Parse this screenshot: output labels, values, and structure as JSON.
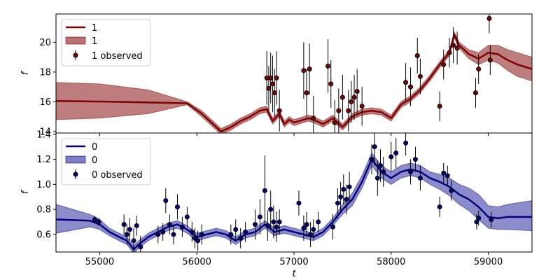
{
  "chart_data": [
    {
      "type": "line",
      "panel": "top",
      "title": "",
      "xlabel": "",
      "ylabel": "f",
      "xlim": [
        54550,
        59450
      ],
      "ylim": [
        13.9,
        21.9
      ],
      "xticks": [
        55000,
        56000,
        57000,
        58000,
        59000
      ],
      "yticks": [
        14,
        16,
        18,
        20
      ],
      "yticklabels": [
        "14",
        "16",
        "18",
        "20"
      ],
      "show_xticklabels": false,
      "legend": {
        "placement": "top-left",
        "entries": [
          "1",
          "1",
          "1 observed"
        ]
      },
      "color": "#800000",
      "band_color": "#b87070",
      "series": [
        {
          "name": "1",
          "kind": "mean",
          "x": [
            54550,
            55000,
            55500,
            55900,
            56050,
            56150,
            56250,
            56350,
            56450,
            56550,
            56650,
            56720,
            56780,
            56850,
            56900,
            56950,
            57000,
            57100,
            57150,
            57200,
            57300,
            57400,
            57500,
            57600,
            57700,
            57800,
            57900,
            58000,
            58100,
            58200,
            58300,
            58400,
            58500,
            58600,
            58650,
            58700,
            58800,
            58900,
            59000,
            59100,
            59200,
            59300,
            59450
          ],
          "y": [
            16.05,
            16.02,
            15.95,
            15.9,
            15.2,
            14.6,
            14.0,
            14.3,
            14.7,
            15.0,
            15.4,
            15.5,
            14.7,
            15.2,
            14.5,
            14.8,
            14.6,
            14.8,
            14.9,
            14.8,
            14.5,
            14.9,
            14.3,
            15.0,
            15.3,
            15.4,
            15.3,
            14.9,
            15.8,
            16.2,
            16.8,
            17.6,
            18.5,
            19.3,
            20.5,
            19.8,
            19.2,
            18.9,
            19.3,
            19.2,
            18.8,
            18.5,
            18.2
          ]
        },
        {
          "name": "1",
          "kind": "band",
          "x": [
            54550,
            55000,
            55500,
            55900,
            56050,
            56150,
            56250,
            56350,
            56450,
            56550,
            56650,
            56720,
            56780,
            56850,
            56900,
            56950,
            57000,
            57100,
            57150,
            57200,
            57300,
            57400,
            57500,
            57600,
            57700,
            57800,
            57900,
            58000,
            58100,
            58200,
            58300,
            58400,
            58500,
            58600,
            58650,
            58700,
            58800,
            58900,
            59000,
            59100,
            59200,
            59300,
            59450
          ],
          "lower": [
            14.8,
            14.9,
            15.2,
            15.8,
            15.0,
            14.4,
            13.8,
            14.1,
            14.5,
            14.8,
            15.2,
            15.3,
            14.5,
            15.0,
            14.3,
            14.6,
            14.4,
            14.6,
            14.7,
            14.6,
            14.3,
            14.7,
            14.1,
            14.8,
            15.1,
            15.2,
            15.1,
            14.7,
            15.6,
            16.0,
            16.6,
            17.4,
            18.3,
            19.1,
            20.3,
            19.6,
            18.9,
            18.5,
            18.8,
            18.6,
            18.1,
            17.7,
            17.4
          ],
          "upper": [
            17.3,
            17.2,
            16.8,
            16.0,
            15.4,
            14.8,
            14.2,
            14.5,
            14.9,
            15.2,
            15.6,
            15.7,
            14.9,
            15.4,
            14.7,
            15.0,
            14.8,
            15.0,
            15.1,
            15.0,
            14.7,
            15.1,
            14.5,
            15.2,
            15.5,
            15.6,
            15.5,
            15.1,
            16.0,
            16.4,
            17.0,
            17.8,
            18.7,
            19.5,
            20.7,
            20.0,
            19.5,
            19.3,
            19.8,
            19.8,
            19.5,
            19.3,
            19.0
          ]
        },
        {
          "name": "1 observed",
          "kind": "observed",
          "x": [
            56720,
            56740,
            56760,
            56780,
            56800,
            56820,
            56850,
            57100,
            57130,
            57160,
            57200,
            57350,
            57380,
            57420,
            57460,
            57500,
            57560,
            57590,
            57620,
            57650,
            57700,
            58150,
            58200,
            58270,
            58300,
            58500,
            58540,
            58600,
            58640,
            58680,
            58870,
            58900,
            59010,
            59020
          ],
          "y": [
            17.6,
            16.9,
            17.6,
            17.2,
            16.6,
            17.6,
            15.4,
            18.1,
            16.6,
            18.2,
            14.9,
            18.4,
            17.2,
            14.6,
            15.4,
            16.3,
            15.4,
            16.0,
            16.3,
            16.7,
            15.7,
            17.3,
            17.0,
            19.1,
            17.7,
            15.7,
            18.5,
            19.3,
            19.8,
            19.6,
            16.6,
            18.2,
            21.6,
            18.8
          ],
          "err": [
            1.8,
            1.5,
            1.7,
            1.9,
            1.6,
            1.8,
            1.4,
            1.9,
            1.6,
            1.7,
            1.5,
            1.8,
            1.6,
            1.5,
            1.5,
            1.5,
            1.4,
            1.4,
            1.5,
            1.5,
            1.3,
            1.3,
            1.3,
            1.2,
            1.2,
            1.0,
            1.0,
            1.0,
            1.2,
            1.1,
            1.0,
            1.0,
            1.0,
            1.0
          ]
        }
      ]
    },
    {
      "type": "line",
      "panel": "bottom",
      "title": "",
      "xlabel": "t",
      "ylabel": "f",
      "xlim": [
        54550,
        59450
      ],
      "ylim": [
        0.46,
        1.41
      ],
      "xticks": [
        55000,
        56000,
        57000,
        58000,
        59000
      ],
      "xticklabels": [
        "55000",
        "56000",
        "57000",
        "58000",
        "59000"
      ],
      "yticks": [
        0.6,
        0.8,
        1.0,
        1.2,
        1.4
      ],
      "yticklabels": [
        "0.6",
        "0.8",
        "1.0",
        "1.2",
        "1.4"
      ],
      "show_xticklabels": true,
      "legend": {
        "placement": "top-left",
        "entries": [
          "0",
          "0",
          "0 observed"
        ]
      },
      "color": "#00007f",
      "band_color": "#7f7fc4",
      "series": [
        {
          "name": "0",
          "kind": "mean",
          "x": [
            54550,
            54900,
            55000,
            55100,
            55200,
            55280,
            55350,
            55400,
            55500,
            55600,
            55700,
            55800,
            55900,
            56000,
            56100,
            56200,
            56300,
            56400,
            56500,
            56600,
            56700,
            56800,
            56900,
            57000,
            57100,
            57200,
            57300,
            57400,
            57500,
            57600,
            57700,
            57800,
            57900,
            58000,
            58100,
            58200,
            58300,
            58400,
            58500,
            58600,
            58700,
            58800,
            58900,
            59000,
            59100,
            59200,
            59450
          ],
          "y": [
            0.72,
            0.71,
            0.68,
            0.62,
            0.58,
            0.55,
            0.48,
            0.52,
            0.58,
            0.62,
            0.66,
            0.68,
            0.64,
            0.58,
            0.6,
            0.62,
            0.6,
            0.55,
            0.6,
            0.62,
            0.68,
            0.62,
            0.64,
            0.62,
            0.6,
            0.58,
            0.62,
            0.7,
            0.8,
            0.88,
            1.02,
            1.2,
            1.1,
            1.05,
            1.1,
            1.12,
            1.1,
            1.05,
            1.02,
            0.98,
            0.92,
            0.88,
            0.82,
            0.74,
            0.73,
            0.74,
            0.74
          ]
        },
        {
          "name": "0",
          "kind": "band",
          "x": [
            54550,
            54900,
            55000,
            55100,
            55200,
            55280,
            55350,
            55400,
            55500,
            55600,
            55700,
            55800,
            55900,
            56000,
            56100,
            56200,
            56300,
            56400,
            56500,
            56600,
            56700,
            56800,
            56900,
            57000,
            57100,
            57200,
            57300,
            57400,
            57500,
            57600,
            57700,
            57800,
            57900,
            58000,
            58100,
            58200,
            58300,
            58400,
            58500,
            58600,
            58700,
            58800,
            58900,
            59000,
            59100,
            59200,
            59450
          ],
          "lower": [
            0.61,
            0.66,
            0.64,
            0.59,
            0.55,
            0.52,
            0.45,
            0.49,
            0.55,
            0.59,
            0.63,
            0.65,
            0.61,
            0.55,
            0.57,
            0.59,
            0.57,
            0.52,
            0.57,
            0.59,
            0.65,
            0.59,
            0.61,
            0.59,
            0.57,
            0.55,
            0.59,
            0.67,
            0.76,
            0.83,
            0.97,
            1.15,
            1.05,
            1.0,
            1.05,
            1.07,
            1.05,
            1.0,
            0.96,
            0.91,
            0.84,
            0.79,
            0.72,
            0.65,
            0.64,
            0.64,
            0.63
          ],
          "upper": [
            0.84,
            0.76,
            0.72,
            0.65,
            0.61,
            0.58,
            0.51,
            0.55,
            0.61,
            0.65,
            0.69,
            0.71,
            0.67,
            0.61,
            0.63,
            0.65,
            0.63,
            0.58,
            0.63,
            0.65,
            0.71,
            0.65,
            0.67,
            0.65,
            0.63,
            0.61,
            0.65,
            0.73,
            0.84,
            0.93,
            1.07,
            1.25,
            1.15,
            1.1,
            1.15,
            1.17,
            1.15,
            1.1,
            1.08,
            1.05,
            1.0,
            0.97,
            0.92,
            0.83,
            0.82,
            0.84,
            0.87
          ]
        },
        {
          "name": "0 observed",
          "kind": "observed",
          "x": [
            54950,
            54990,
            55250,
            55280,
            55310,
            55350,
            55380,
            55420,
            55600,
            55650,
            55680,
            55720,
            55760,
            55800,
            55850,
            55900,
            55950,
            55980,
            56010,
            56050,
            56350,
            56400,
            56450,
            56500,
            56600,
            56650,
            56700,
            56730,
            56760,
            56790,
            56820,
            56850,
            57050,
            57100,
            57130,
            57170,
            57200,
            57250,
            57400,
            57450,
            57480,
            57510,
            57540,
            57570,
            57800,
            57830,
            57860,
            57890,
            57920,
            58000,
            58050,
            58150,
            58200,
            58250,
            58300,
            58500,
            58540,
            58580,
            58620,
            58880,
            58900,
            59030
          ],
          "y": [
            0.72,
            0.7,
            0.68,
            0.6,
            0.64,
            0.55,
            0.67,
            0.5,
            0.6,
            0.62,
            0.87,
            0.68,
            0.6,
            0.82,
            0.66,
            0.74,
            0.62,
            0.57,
            0.55,
            0.6,
            0.6,
            0.64,
            0.57,
            0.62,
            0.68,
            0.74,
            0.95,
            0.67,
            0.8,
            0.7,
            0.66,
            0.7,
            0.85,
            0.65,
            0.68,
            0.6,
            0.64,
            0.7,
            0.66,
            0.85,
            0.9,
            0.96,
            0.88,
            0.98,
            1.2,
            1.3,
            1.05,
            1.15,
            1.1,
            1.22,
            1.25,
            1.33,
            1.1,
            1.2,
            1.05,
            0.82,
            1.09,
            1.07,
            0.95,
            0.7,
            0.73,
            0.72
          ],
          "err": [
            0.03,
            0.03,
            0.08,
            0.08,
            0.09,
            0.1,
            0.08,
            0.09,
            0.07,
            0.07,
            0.1,
            0.08,
            0.08,
            0.1,
            0.08,
            0.08,
            0.08,
            0.08,
            0.08,
            0.08,
            0.08,
            0.08,
            0.08,
            0.08,
            0.12,
            0.14,
            0.28,
            0.12,
            0.15,
            0.13,
            0.12,
            0.1,
            0.1,
            0.1,
            0.1,
            0.1,
            0.08,
            0.08,
            0.1,
            0.12,
            0.12,
            0.12,
            0.12,
            0.12,
            0.12,
            0.15,
            0.14,
            0.13,
            0.12,
            0.12,
            0.12,
            0.1,
            0.1,
            0.1,
            0.1,
            0.08,
            0.08,
            0.08,
            0.08,
            0.06,
            0.06,
            0.06
          ]
        }
      ]
    }
  ]
}
